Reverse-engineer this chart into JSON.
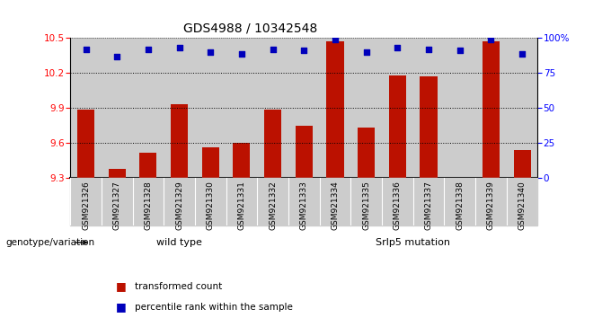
{
  "title": "GDS4988 / 10342548",
  "samples": [
    "GSM921326",
    "GSM921327",
    "GSM921328",
    "GSM921329",
    "GSM921330",
    "GSM921331",
    "GSM921332",
    "GSM921333",
    "GSM921334",
    "GSM921335",
    "GSM921336",
    "GSM921337",
    "GSM921338",
    "GSM921339",
    "GSM921340"
  ],
  "transformed_count": [
    9.89,
    9.38,
    9.52,
    9.93,
    9.56,
    9.6,
    9.89,
    9.75,
    10.47,
    9.73,
    10.18,
    10.17,
    9.3,
    10.47,
    9.54
  ],
  "percentile_rank": [
    92,
    87,
    92,
    93,
    90,
    89,
    92,
    91,
    99,
    90,
    93,
    92,
    91,
    99,
    89
  ],
  "ylim_left": [
    9.3,
    10.5
  ],
  "ylim_right": [
    0,
    100
  ],
  "yticks_left": [
    9.3,
    9.6,
    9.9,
    10.2,
    10.5
  ],
  "yticks_right": [
    0,
    25,
    50,
    75,
    100
  ],
  "ytick_labels_right": [
    "0",
    "25",
    "50",
    "75",
    "100%"
  ],
  "bar_color": "#bb1100",
  "dot_color": "#0000bb",
  "col_bg_color": "#cccccc",
  "wild_type_samples": 7,
  "wild_type_label": "wild type",
  "mutation_label": "Srlp5 mutation",
  "group_bg_wild": "#aaeaaa",
  "group_bg_mut": "#44cc44",
  "legend_bar_label": "transformed count",
  "legend_dot_label": "percentile rank within the sample",
  "genotype_label": "genotype/variation",
  "dotted_grid_values": [
    9.6,
    9.9,
    10.2
  ]
}
